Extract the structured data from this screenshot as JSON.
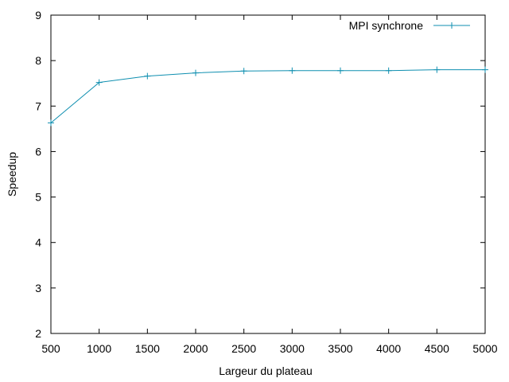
{
  "chart_data": {
    "type": "line",
    "title": "",
    "xlabel": "Largeur du plateau",
    "ylabel": "Speedup",
    "xlim": [
      500,
      5000
    ],
    "ylim": [
      2,
      9
    ],
    "xticks": [
      500,
      1000,
      1500,
      2000,
      2500,
      3000,
      3500,
      4000,
      4500,
      5000
    ],
    "yticks": [
      2,
      3,
      4,
      5,
      6,
      7,
      8,
      9
    ],
    "grid": false,
    "legend_position": "top-right",
    "series": [
      {
        "name": "MPI synchrone",
        "color": "#0f8fb0",
        "marker": "plus",
        "x": [
          500,
          1000,
          1500,
          2000,
          2500,
          3000,
          3500,
          4000,
          4500,
          5000
        ],
        "y": [
          6.63,
          7.52,
          7.66,
          7.73,
          7.77,
          7.78,
          7.78,
          7.78,
          7.8,
          7.8
        ]
      }
    ]
  }
}
